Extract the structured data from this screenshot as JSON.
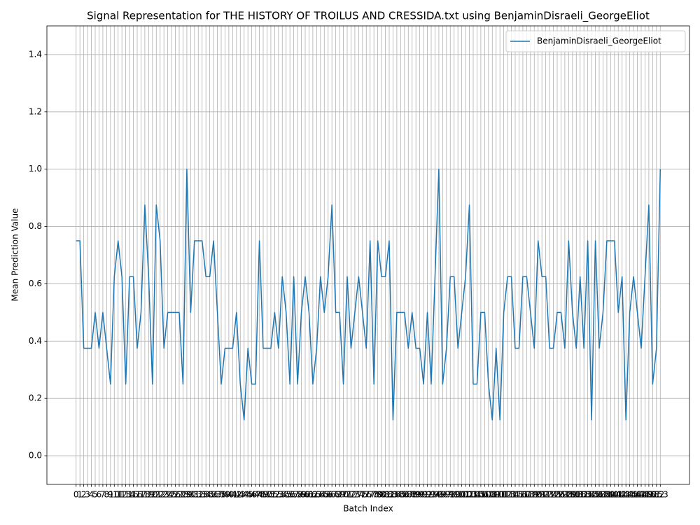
{
  "chart_data": {
    "type": "line",
    "title": "Signal Representation for THE HISTORY OF TROILUS AND CRESSIDA.txt using BenjaminDisraeli_GeorgeEliot",
    "x_label": "Batch Index",
    "y_label": "Mean Prediction Value",
    "x": [
      0,
      1,
      2,
      3,
      4,
      5,
      6,
      7,
      8,
      9,
      10,
      11,
      12,
      13,
      14,
      15,
      16,
      17,
      18,
      19,
      20,
      21,
      22,
      23,
      24,
      25,
      26,
      27,
      28,
      29,
      30,
      31,
      32,
      33,
      34,
      35,
      36,
      37,
      38,
      39,
      40,
      41,
      42,
      43,
      44,
      45,
      46,
      47,
      48,
      49,
      50,
      51,
      52,
      53,
      54,
      55,
      56,
      57,
      58,
      59,
      60,
      61,
      62,
      63,
      64,
      65,
      66,
      67,
      68,
      69,
      70,
      71,
      72,
      73,
      74,
      75,
      76,
      77,
      78,
      79,
      80,
      81,
      82,
      83,
      84,
      85,
      86,
      87,
      88,
      89,
      90,
      91,
      92,
      93,
      94,
      95,
      96,
      97,
      98,
      99,
      100,
      101,
      102,
      103,
      104,
      105,
      106,
      107,
      108,
      109,
      110,
      111,
      112,
      113,
      114,
      115,
      116,
      117,
      118,
      119,
      120,
      121,
      122,
      123,
      124,
      125,
      126,
      127,
      128,
      129,
      130,
      131,
      132,
      133,
      134,
      135,
      136,
      137,
      138,
      139,
      140,
      141,
      142,
      143,
      144,
      145,
      146,
      147,
      148,
      149,
      150,
      151,
      152,
      153
    ],
    "series": [
      {
        "name": "BenjaminDisraeli_GeorgeEliot",
        "color": "#1f77b4",
        "values": [
          0.75,
          0.75,
          0.375,
          0.375,
          0.375,
          0.5,
          0.375,
          0.5,
          0.375,
          0.25,
          0.625,
          0.75,
          0.625,
          0.25,
          0.625,
          0.625,
          0.375,
          0.5,
          0.875,
          0.625,
          0.25,
          0.875,
          0.75,
          0.375,
          0.5,
          0.5,
          0.5,
          0.5,
          0.25,
          1.0,
          0.5,
          0.75,
          0.75,
          0.75,
          0.625,
          0.625,
          0.75,
          0.5,
          0.25,
          0.375,
          0.375,
          0.375,
          0.5,
          0.25,
          0.125,
          0.375,
          0.25,
          0.25,
          0.75,
          0.375,
          0.375,
          0.375,
          0.5,
          0.375,
          0.625,
          0.5,
          0.25,
          0.625,
          0.25,
          0.5,
          0.625,
          0.5,
          0.25,
          0.375,
          0.625,
          0.5,
          0.625,
          0.875,
          0.5,
          0.5,
          0.25,
          0.625,
          0.375,
          0.5,
          0.625,
          0.5,
          0.375,
          0.75,
          0.25,
          0.75,
          0.625,
          0.625,
          0.75,
          0.125,
          0.5,
          0.5,
          0.5,
          0.375,
          0.5,
          0.375,
          0.375,
          0.25,
          0.5,
          0.25,
          0.625,
          1.0,
          0.25,
          0.375,
          0.625,
          0.625,
          0.375,
          0.5,
          0.625,
          0.875,
          0.25,
          0.25,
          0.5,
          0.5,
          0.25,
          0.125,
          0.375,
          0.125,
          0.5,
          0.625,
          0.625,
          0.375,
          0.375,
          0.625,
          0.625,
          0.5,
          0.375,
          0.75,
          0.625,
          0.625,
          0.375,
          0.375,
          0.5,
          0.5,
          0.375,
          0.75,
          0.5,
          0.375,
          0.625,
          0.375,
          0.75,
          0.125,
          0.75,
          0.375,
          0.5,
          0.75,
          0.75,
          0.75,
          0.5,
          0.625,
          0.125,
          0.5,
          0.625,
          0.5,
          0.375,
          0.625,
          0.875,
          0.25,
          0.375,
          1.0
        ]
      }
    ],
    "xlim": [
      -7.65,
      160.65
    ],
    "xticks": [
      0,
      1,
      2,
      3,
      4,
      5,
      6,
      7,
      8,
      9,
      10,
      11,
      12,
      13,
      14,
      15,
      16,
      17,
      18,
      19,
      20,
      21,
      22,
      23,
      24,
      25,
      26,
      27,
      28,
      29,
      30,
      31,
      32,
      33,
      34,
      35,
      36,
      37,
      38,
      39,
      40,
      41,
      42,
      43,
      44,
      45,
      46,
      47,
      48,
      49,
      50,
      51,
      52,
      53,
      54,
      55,
      56,
      57,
      58,
      59,
      60,
      61,
      62,
      63,
      64,
      65,
      66,
      67,
      68,
      69,
      70,
      71,
      72,
      73,
      74,
      75,
      76,
      77,
      78,
      79,
      80,
      81,
      82,
      83,
      84,
      85,
      86,
      87,
      88,
      89,
      90,
      91,
      92,
      93,
      94,
      95,
      96,
      97,
      98,
      99,
      100,
      101,
      102,
      103,
      104,
      105,
      106,
      107,
      108,
      109,
      110,
      111,
      112,
      113,
      114,
      115,
      116,
      117,
      118,
      119,
      120,
      121,
      122,
      123,
      124,
      125,
      126,
      127,
      128,
      129,
      130,
      131,
      132,
      133,
      134,
      135,
      136,
      137,
      138,
      139,
      140,
      141,
      142,
      143,
      144,
      145,
      146,
      147,
      148,
      149,
      150,
      151,
      152,
      153
    ],
    "ylim": [
      -0.1,
      1.5
    ],
    "yticks": [
      {
        "value": 0,
        "label": "0.0"
      },
      0.2,
      0.4,
      0.6,
      0.8,
      {
        "value": 1,
        "label": "1.0"
      },
      1.2,
      1.4
    ],
    "grid": true,
    "legend": "upper right"
  }
}
